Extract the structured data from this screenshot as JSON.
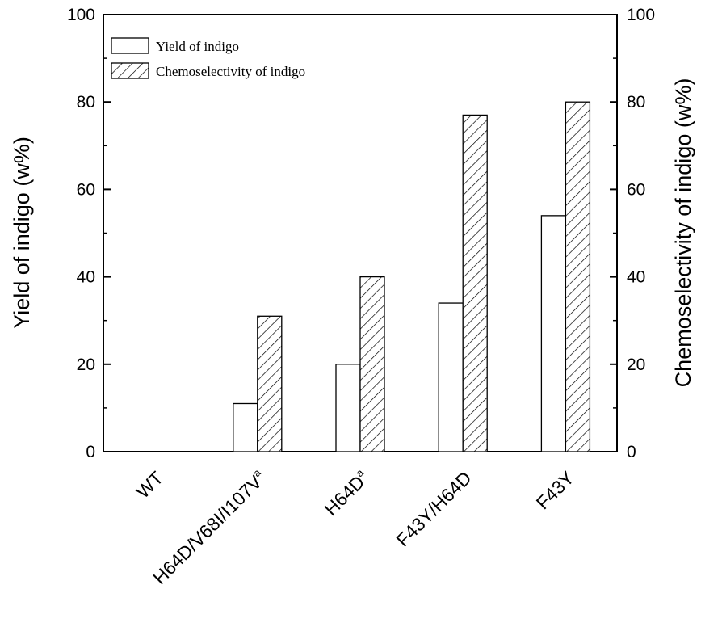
{
  "chart_data": {
    "type": "bar",
    "categories": [
      {
        "base": "WT",
        "sup": ""
      },
      {
        "base": "H64D/V68I/I107V",
        "sup": "a"
      },
      {
        "base": "H64D",
        "sup": "a"
      },
      {
        "base": "F43Y/H64D",
        "sup": ""
      },
      {
        "base": "F43Y",
        "sup": ""
      }
    ],
    "series": [
      {
        "name": "Yield of indigo",
        "values": [
          0,
          11,
          20,
          34,
          54
        ],
        "fill": "open"
      },
      {
        "name": "Chemoselectivity of indigo",
        "values": [
          0,
          31,
          40,
          77,
          80
        ],
        "fill": "hatched"
      }
    ],
    "ylabel": "Yield of indigo (w%)",
    "ylabel_right": "Chemoselectivity of indigo (w%)",
    "ylim": [
      0,
      100
    ],
    "yticks": [
      0,
      20,
      40,
      60,
      80,
      100
    ],
    "legend_position": "top-left",
    "grid": false,
    "colors": {
      "bar_stroke": "#000000",
      "bar_fill": "#ffffff",
      "hatch": "#000000"
    }
  }
}
